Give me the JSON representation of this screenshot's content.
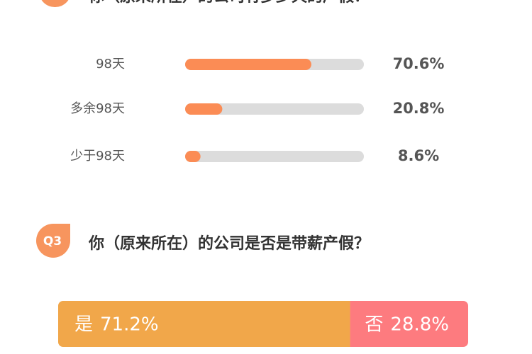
{
  "chart_data": [
    {
      "type": "progress",
      "title": "你（原来所在）的公司有多少天的产假？",
      "categories": [
        "98天",
        "多余98天",
        "少于98天"
      ],
      "values": [
        70.6,
        20.8,
        8.6
      ],
      "value_labels": [
        "70.6%",
        "20.8%",
        "8.6%"
      ],
      "xlim": [
        0,
        100
      ],
      "color": "#fb8c55",
      "track_color": "#dcdcdc"
    },
    {
      "type": "stacked-bar",
      "badge": "Q3",
      "title": "你（原来所在）的公司是否是带薪产假？",
      "series": [
        {
          "name": "是",
          "color": "#f1a74a",
          "values": [
            71.2
          ],
          "value_labels": [
            "71.2%"
          ]
        },
        {
          "name": "否",
          "color": "#fd7b7f",
          "values": [
            28.8
          ],
          "value_labels": [
            "28.8%"
          ]
        }
      ],
      "xlim": [
        0,
        100
      ]
    }
  ]
}
